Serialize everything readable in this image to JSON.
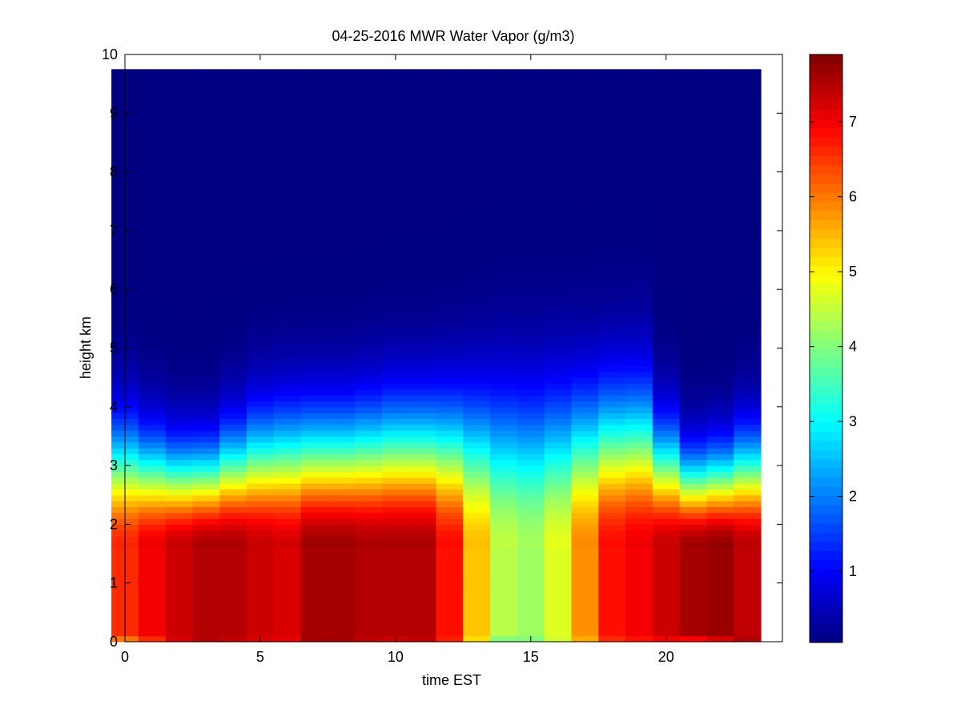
{
  "chart_data": {
    "type": "heatmap",
    "title": "04-25-2016 MWR Water Vapor (g/m3)",
    "xlabel": "time EST",
    "ylabel": "height km",
    "xlim": [
      0,
      24.3
    ],
    "ylim": [
      0,
      10
    ],
    "x_ticks": [
      "0",
      "5",
      "10",
      "15",
      "20"
    ],
    "y_ticks": [
      "0",
      "1",
      "2",
      "3",
      "4",
      "5",
      "6",
      "7",
      "8",
      "9",
      "10"
    ],
    "colorbar": {
      "ticks": [
        "1",
        "2",
        "3",
        "4",
        "5",
        "6",
        "7"
      ],
      "range": [
        0.05,
        7.9
      ],
      "colormap": "jet"
    },
    "grid": false,
    "time_hours": [
      0,
      1,
      2,
      3,
      4,
      5,
      6,
      7,
      8,
      9,
      10,
      11,
      12,
      13,
      14,
      15,
      16,
      17,
      18,
      19,
      20,
      21,
      22,
      23
    ],
    "surface_vapor": [
      6.0,
      6.6,
      7.2,
      7.5,
      7.4,
      7.2,
      7.1,
      7.6,
      7.6,
      7.4,
      7.3,
      7.4,
      6.7,
      5.2,
      4.0,
      4.0,
      4.6,
      5.6,
      6.6,
      6.8,
      7.0,
      6.9,
      7.2,
      7.5
    ],
    "peak_vapor": [
      6.6,
      7.0,
      7.3,
      7.5,
      7.5,
      7.3,
      7.2,
      7.6,
      7.6,
      7.5,
      7.5,
      7.5,
      6.8,
      5.4,
      4.4,
      4.2,
      4.7,
      5.8,
      6.8,
      7.0,
      7.3,
      7.6,
      7.7,
      7.4
    ],
    "moist_layer_top_km": [
      4.5,
      4.2,
      4.0,
      4.0,
      4.3,
      4.6,
      4.7,
      4.7,
      4.7,
      4.8,
      4.9,
      4.9,
      5.0,
      5.2,
      5.4,
      5.4,
      5.4,
      5.3,
      5.3,
      5.3,
      4.4,
      3.8,
      3.9,
      4.2
    ]
  }
}
